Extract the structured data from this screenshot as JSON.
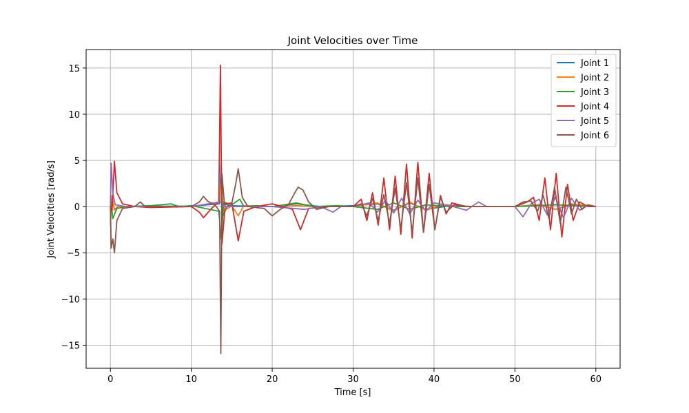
{
  "chart_data": {
    "type": "line",
    "title": "Joint Velocities over Time",
    "xlabel": "Time [s]",
    "ylabel": "Joint Velocities [rad/s]",
    "xlim": [
      -3,
      63
    ],
    "ylim": [
      -17.5,
      17
    ],
    "xticks": [
      0,
      10,
      20,
      30,
      40,
      50,
      60
    ],
    "yticks": [
      -15,
      -10,
      -5,
      0,
      5,
      10,
      15
    ],
    "grid": true,
    "legend_position": "top-right",
    "series": [
      {
        "name": "Joint 1",
        "color": "#1f77b4",
        "points": [
          [
            0,
            -1.5
          ],
          [
            0.2,
            0.8
          ],
          [
            0.5,
            -0.3
          ],
          [
            1,
            0
          ],
          [
            5,
            0.05
          ],
          [
            10,
            0.05
          ],
          [
            13.5,
            0.3
          ],
          [
            13.7,
            4.5
          ],
          [
            13.9,
            -1.0
          ],
          [
            14.5,
            0.1
          ],
          [
            20,
            0
          ],
          [
            23,
            0.3
          ],
          [
            26,
            0
          ],
          [
            30,
            0.1
          ],
          [
            33,
            0.3
          ],
          [
            35,
            -0.4
          ],
          [
            37,
            0.4
          ],
          [
            39,
            -0.3
          ],
          [
            42,
            0.1
          ],
          [
            45,
            0
          ],
          [
            50,
            0
          ],
          [
            53,
            0.2
          ],
          [
            55,
            -0.3
          ],
          [
            57,
            0.2
          ],
          [
            60,
            0
          ]
        ]
      },
      {
        "name": "Joint 2",
        "color": "#ff7f0e",
        "points": [
          [
            0,
            -2.0
          ],
          [
            0.2,
            1.2
          ],
          [
            0.5,
            -0.4
          ],
          [
            1,
            0
          ],
          [
            5,
            0
          ],
          [
            10,
            0
          ],
          [
            13.4,
            0.5
          ],
          [
            13.7,
            2.5
          ],
          [
            14.0,
            -0.5
          ],
          [
            15,
            0.1
          ],
          [
            15.8,
            -1.0
          ],
          [
            16.5,
            0.1
          ],
          [
            20,
            0
          ],
          [
            23,
            0.1
          ],
          [
            26,
            0
          ],
          [
            30,
            0
          ],
          [
            33,
            0.4
          ],
          [
            35,
            -0.5
          ],
          [
            37,
            0.5
          ],
          [
            39,
            -0.4
          ],
          [
            41,
            0.2
          ],
          [
            45,
            0
          ],
          [
            50,
            0
          ],
          [
            53,
            0.2
          ],
          [
            55,
            -0.3
          ],
          [
            57,
            0.3
          ],
          [
            60,
            0
          ]
        ]
      },
      {
        "name": "Joint 3",
        "color": "#2ca02c",
        "points": [
          [
            0,
            1.0
          ],
          [
            0.3,
            -1.3
          ],
          [
            0.8,
            -0.2
          ],
          [
            2,
            0
          ],
          [
            5,
            0.1
          ],
          [
            7.5,
            0.3
          ],
          [
            8.5,
            0
          ],
          [
            10,
            0.1
          ],
          [
            13.4,
            -0.5
          ],
          [
            13.7,
            -3.5
          ],
          [
            14,
            0.5
          ],
          [
            15,
            0.2
          ],
          [
            16,
            0.8
          ],
          [
            16.5,
            0
          ],
          [
            18,
            0.1
          ],
          [
            20,
            0
          ],
          [
            23,
            0.4
          ],
          [
            25,
            0
          ],
          [
            28,
            0.1
          ],
          [
            30,
            0
          ],
          [
            33,
            -0.3
          ],
          [
            35,
            0.4
          ],
          [
            37,
            -0.3
          ],
          [
            39,
            0.2
          ],
          [
            42,
            0
          ],
          [
            50,
            0
          ],
          [
            55,
            0.2
          ],
          [
            60,
            0
          ]
        ]
      },
      {
        "name": "Joint 4",
        "color": "#d62728",
        "points": [
          [
            0,
            0
          ],
          [
            0.2,
            -0.5
          ],
          [
            0.5,
            4.9
          ],
          [
            0.8,
            1.5
          ],
          [
            1.5,
            0.3
          ],
          [
            3,
            0
          ],
          [
            5,
            -0.1
          ],
          [
            10,
            0
          ],
          [
            11,
            -0.6
          ],
          [
            11.5,
            -1.2
          ],
          [
            12.5,
            -0.2
          ],
          [
            13.4,
            0.5
          ],
          [
            13.6,
            15.3
          ],
          [
            13.8,
            -4.0
          ],
          [
            14.2,
            0.3
          ],
          [
            15,
            0.4
          ],
          [
            15.8,
            -3.7
          ],
          [
            16.5,
            -0.5
          ],
          [
            18,
            0
          ],
          [
            20,
            0.3
          ],
          [
            22.5,
            -0.3
          ],
          [
            23.5,
            -2.5
          ],
          [
            24.5,
            -0.2
          ],
          [
            27,
            0
          ],
          [
            30,
            0
          ],
          [
            31,
            0.8
          ],
          [
            31.7,
            -1.5
          ],
          [
            32.4,
            1.5
          ],
          [
            33.1,
            -2.0
          ],
          [
            33.8,
            3.1
          ],
          [
            34.5,
            -2.5
          ],
          [
            35.2,
            3.3
          ],
          [
            35.9,
            -3.0
          ],
          [
            36.6,
            4.6
          ],
          [
            37.3,
            -3.4
          ],
          [
            38.0,
            4.8
          ],
          [
            38.7,
            -2.8
          ],
          [
            39.4,
            3.6
          ],
          [
            40.1,
            -2.5
          ],
          [
            40.8,
            1.2
          ],
          [
            41.5,
            -0.8
          ],
          [
            42.2,
            0.4
          ],
          [
            44,
            0
          ],
          [
            50,
            0
          ],
          [
            51.5,
            0.5
          ],
          [
            52.3,
            1.0
          ],
          [
            53.0,
            -1.5
          ],
          [
            53.7,
            3.1
          ],
          [
            54.4,
            -2.5
          ],
          [
            55.1,
            3.6
          ],
          [
            55.8,
            -3.3
          ],
          [
            56.5,
            2.4
          ],
          [
            57.2,
            -1.5
          ],
          [
            58,
            0.5
          ],
          [
            59,
            0
          ],
          [
            60,
            0
          ]
        ]
      },
      {
        "name": "Joint 5",
        "color": "#9467bd",
        "points": [
          [
            0,
            0
          ],
          [
            0.1,
            4.7
          ],
          [
            0.3,
            1.5
          ],
          [
            0.6,
            0.2
          ],
          [
            2,
            0
          ],
          [
            10,
            0
          ],
          [
            13.7,
            0.5
          ],
          [
            14,
            0
          ],
          [
            20,
            0
          ],
          [
            24,
            -0.3
          ],
          [
            26,
            0
          ],
          [
            27.5,
            -0.6
          ],
          [
            28.5,
            0
          ],
          [
            30,
            0
          ],
          [
            32,
            0.4
          ],
          [
            33,
            -0.6
          ],
          [
            34,
            0.7
          ],
          [
            35,
            -0.7
          ],
          [
            36,
            0.9
          ],
          [
            37,
            -0.8
          ],
          [
            38,
            0.7
          ],
          [
            39,
            -0.5
          ],
          [
            40,
            0.4
          ],
          [
            42,
            0.1
          ],
          [
            44,
            -0.4
          ],
          [
            45.5,
            0.5
          ],
          [
            46.5,
            0
          ],
          [
            50,
            0
          ],
          [
            51,
            -1.1
          ],
          [
            52,
            0.3
          ],
          [
            53,
            0.8
          ],
          [
            54,
            -0.9
          ],
          [
            55,
            1.0
          ],
          [
            56,
            -1.2
          ],
          [
            57,
            0.9
          ],
          [
            58,
            -0.4
          ],
          [
            59,
            0.2
          ],
          [
            60,
            0
          ]
        ]
      },
      {
        "name": "Joint 6",
        "color": "#8c564b",
        "points": [
          [
            0,
            0
          ],
          [
            0.1,
            -4.5
          ],
          [
            0.3,
            -3.5
          ],
          [
            0.5,
            -5.0
          ],
          [
            0.8,
            -1.5
          ],
          [
            1.5,
            -0.2
          ],
          [
            3,
            0
          ],
          [
            3.7,
            0.5
          ],
          [
            4.3,
            0
          ],
          [
            6,
            0
          ],
          [
            8,
            0
          ],
          [
            10,
            0
          ],
          [
            11,
            0.5
          ],
          [
            11.5,
            1.1
          ],
          [
            12,
            0.6
          ],
          [
            13,
            0.1
          ],
          [
            13.5,
            -0.5
          ],
          [
            13.65,
            -15.9
          ],
          [
            13.8,
            3.5
          ],
          [
            14.1,
            0.2
          ],
          [
            15,
            0.3
          ],
          [
            15.5,
            2.5
          ],
          [
            15.8,
            4.1
          ],
          [
            16.3,
            1.0
          ],
          [
            17,
            0
          ],
          [
            19,
            -0.2
          ],
          [
            20,
            -1.0
          ],
          [
            21,
            -0.3
          ],
          [
            22,
            0.2
          ],
          [
            22.8,
            1.5
          ],
          [
            23.2,
            2.1
          ],
          [
            23.8,
            1.8
          ],
          [
            24.5,
            0.5
          ],
          [
            25.5,
            -0.3
          ],
          [
            27,
            0
          ],
          [
            30,
            0
          ],
          [
            31,
            0.3
          ],
          [
            31.7,
            -1.0
          ],
          [
            32.4,
            0.9
          ],
          [
            33.1,
            -1.5
          ],
          [
            33.8,
            1.3
          ],
          [
            34.5,
            -1.8
          ],
          [
            35.2,
            2.0
          ],
          [
            35.9,
            -2.4
          ],
          [
            36.6,
            2.6
          ],
          [
            37.3,
            -2.8
          ],
          [
            38.0,
            3.1
          ],
          [
            38.7,
            -2.8
          ],
          [
            39.4,
            2.4
          ],
          [
            40.1,
            -2.5
          ],
          [
            40.8,
            1.0
          ],
          [
            41.5,
            -0.6
          ],
          [
            42.5,
            0.2
          ],
          [
            44,
            0
          ],
          [
            50,
            0
          ],
          [
            51,
            0.5
          ],
          [
            52,
            0.6
          ],
          [
            52.8,
            -0.5
          ],
          [
            53.5,
            1.2
          ],
          [
            54.2,
            -1.3
          ],
          [
            54.9,
            2.1
          ],
          [
            55.6,
            -1.8
          ],
          [
            56.3,
            2.1
          ],
          [
            57,
            -0.8
          ],
          [
            57.6,
            0.8
          ],
          [
            58.3,
            -0.3
          ],
          [
            59,
            0.2
          ],
          [
            60,
            0
          ]
        ]
      }
    ]
  }
}
